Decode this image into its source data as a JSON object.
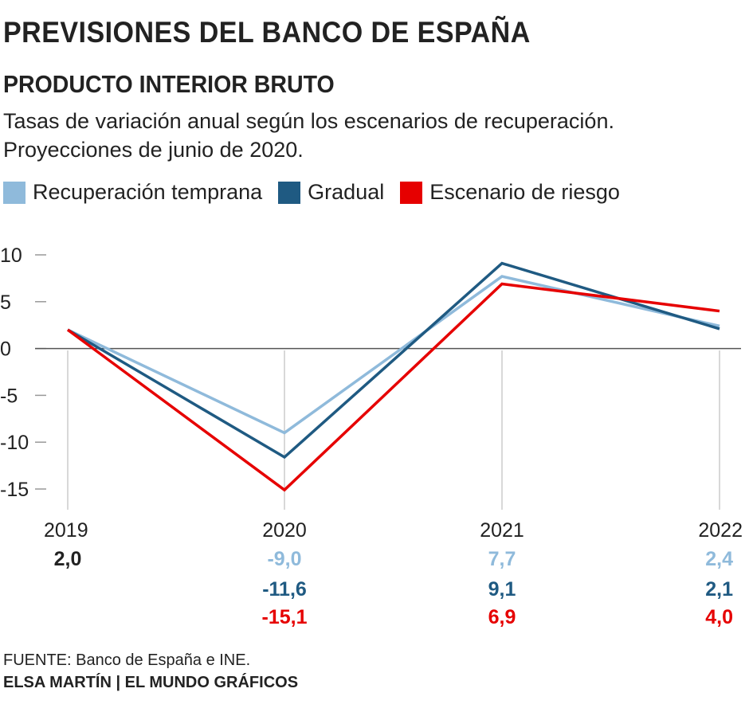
{
  "header": {
    "title": "PREVISIONES DEL BANCO DE ESPAÑA",
    "subtitle": "PRODUCTO INTERIOR BRUTO",
    "description_line1": "Tasas de variación anual según los escenarios de recuperación.",
    "description_line2": "Proyecciones de junio de 2020."
  },
  "footer": {
    "source": "FUENTE: Banco de España e INE.",
    "credit": "ELSA MARTÍN | EL MUNDO GRÁFICOS"
  },
  "colors": {
    "temprana": "#8fbadb",
    "gradual": "#1f5a82",
    "riesgo": "#e60000",
    "base": "#222222",
    "grid": "#cccccc",
    "zero": "#555555"
  },
  "chart_data": {
    "type": "line",
    "title": "PRODUCTO INTERIOR BRUTO",
    "x": [
      "2019",
      "2020",
      "2021",
      "2022"
    ],
    "ylim": [
      -15,
      10
    ],
    "yticks": [
      10,
      5,
      0,
      -5,
      -10,
      -15
    ],
    "ytick_labels": [
      "10",
      "5",
      "0",
      "-5",
      "-10",
      "-15"
    ],
    "grid": "vertical-x-only",
    "legend": "top-left",
    "series": [
      {
        "name": "Recuperación temprana",
        "key": "temprana",
        "values": [
          2.0,
          -9.0,
          7.7,
          2.4
        ],
        "labels": [
          "",
          "-9,0",
          "7,7",
          "2,4"
        ]
      },
      {
        "name": "Gradual",
        "key": "gradual",
        "values": [
          2.0,
          -11.6,
          9.1,
          2.1
        ],
        "labels": [
          "",
          "-11,6",
          "9,1",
          "2,1"
        ]
      },
      {
        "name": "Escenario de riesgo",
        "key": "riesgo",
        "values": [
          2.0,
          -15.1,
          6.9,
          4.0
        ],
        "labels": [
          "",
          "-15,1",
          "6,9",
          "4,0"
        ]
      }
    ],
    "base_label": "2,0"
  }
}
